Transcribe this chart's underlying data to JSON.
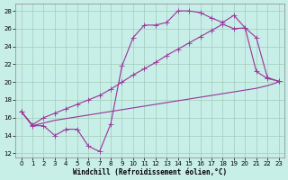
{
  "xlabel": "Windchill (Refroidissement éolien,°C)",
  "bg_color": "#c8eee8",
  "line_color": "#993399",
  "xlim_min": -0.5,
  "xlim_max": 23.5,
  "ylim_min": 11.5,
  "ylim_max": 28.8,
  "yticks": [
    12,
    14,
    16,
    18,
    20,
    22,
    24,
    26,
    28
  ],
  "xticks": [
    0,
    1,
    2,
    3,
    4,
    5,
    6,
    7,
    8,
    9,
    10,
    11,
    12,
    13,
    14,
    15,
    16,
    17,
    18,
    19,
    20,
    21,
    22,
    23
  ],
  "line1_x": [
    0,
    1,
    2,
    3,
    4,
    5,
    6,
    7,
    8,
    9,
    10,
    11,
    12,
    13,
    14,
    15,
    16,
    17,
    18,
    19,
    20,
    21,
    22,
    23
  ],
  "line1_y": [
    16.7,
    15.1,
    15.1,
    14.0,
    14.7,
    14.7,
    12.8,
    12.2,
    15.3,
    21.8,
    25.0,
    26.4,
    26.4,
    26.7,
    28.0,
    28.0,
    27.8,
    27.2,
    26.7,
    27.5,
    26.1,
    21.2,
    20.4,
    20.1
  ],
  "line2_x": [
    0,
    1,
    2,
    3,
    4,
    5,
    6,
    7,
    8,
    9,
    10,
    11,
    12,
    13,
    14,
    15,
    16,
    17,
    18,
    19,
    20,
    21,
    22,
    23
  ],
  "line2_y": [
    16.7,
    15.2,
    16.0,
    16.5,
    17.0,
    17.5,
    18.0,
    18.5,
    19.2,
    20.0,
    20.8,
    21.5,
    22.2,
    23.0,
    23.7,
    24.4,
    25.1,
    25.8,
    26.5,
    26.0,
    26.1,
    25.0,
    20.5,
    20.1
  ],
  "line3_x": [
    0,
    1,
    2,
    3,
    4,
    5,
    6,
    7,
    8,
    9,
    10,
    11,
    12,
    13,
    14,
    15,
    16,
    17,
    18,
    19,
    20,
    21,
    22,
    23
  ],
  "line3_y": [
    16.7,
    15.1,
    15.4,
    15.7,
    15.9,
    16.1,
    16.3,
    16.5,
    16.7,
    16.9,
    17.1,
    17.3,
    17.5,
    17.7,
    17.9,
    18.1,
    18.3,
    18.5,
    18.7,
    18.9,
    19.1,
    19.3,
    19.6,
    20.0
  ],
  "xlabel_fontsize": 5.5,
  "tick_fontsize": 5.0,
  "linewidth": 0.8,
  "markersize": 2.2,
  "grid_color": "#a0ccbb",
  "grid_lw": 0.5
}
